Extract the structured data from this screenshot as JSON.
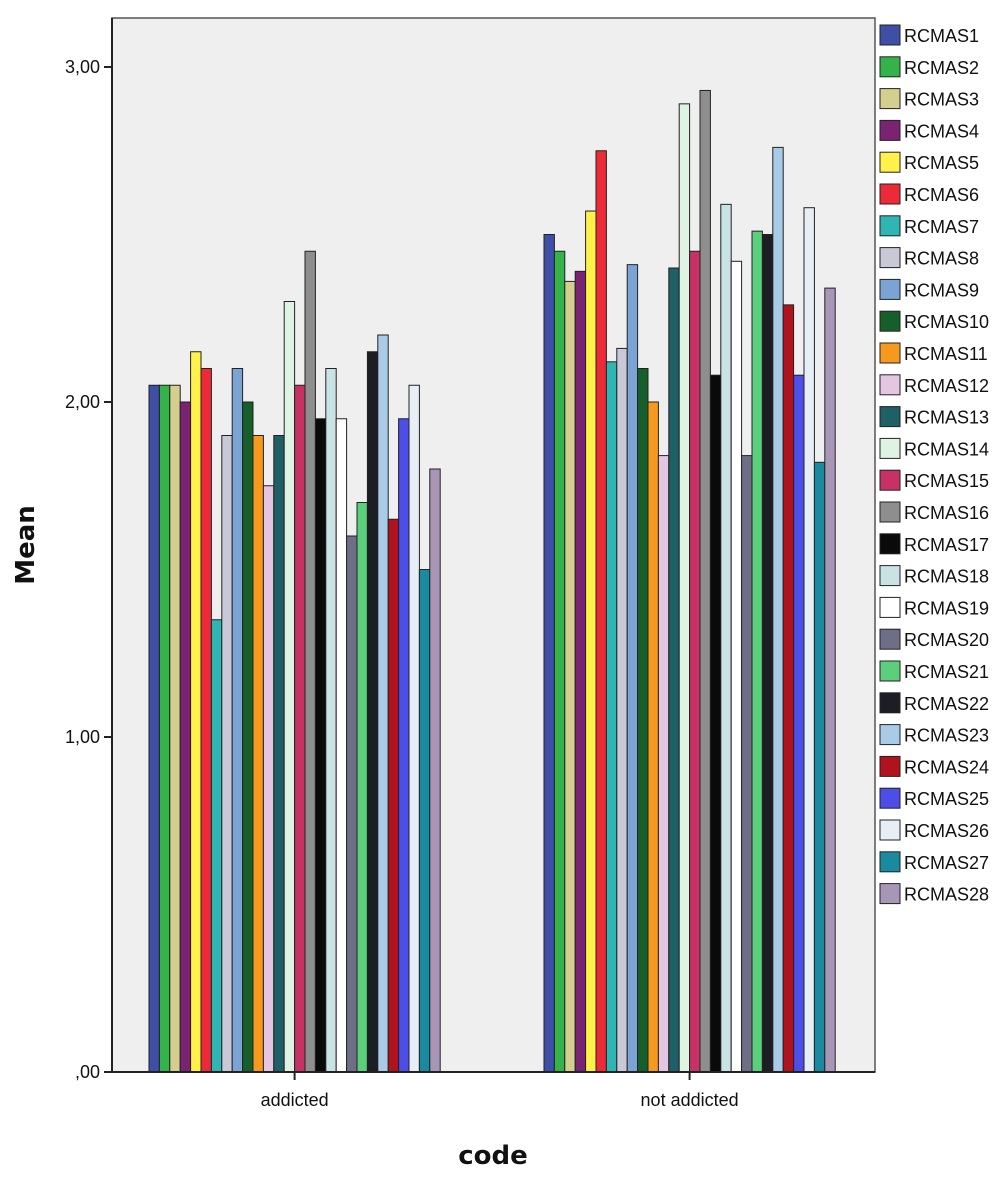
{
  "chart_data": {
    "type": "bar",
    "xlabel": "code",
    "ylabel": "Mean",
    "ylim": [
      0,
      3.2
    ],
    "yticks": [
      {
        "value": 0,
        "label": ",00"
      },
      {
        "value": 1,
        "label": "1,00"
      },
      {
        "value": 2,
        "label": "2,00"
      },
      {
        "value": 3,
        "label": "3,00"
      }
    ],
    "categories": [
      "addicted",
      "not addicted"
    ],
    "legend_position": "right",
    "grid": false,
    "series": [
      {
        "name": "RCMAS1",
        "color": "#3f4fa6",
        "values": [
          2.05,
          2.5
        ]
      },
      {
        "name": "RCMAS2",
        "color": "#33b34a",
        "values": [
          2.05,
          2.45
        ]
      },
      {
        "name": "RCMAS3",
        "color": "#d4cf8e",
        "values": [
          2.05,
          2.36
        ]
      },
      {
        "name": "RCMAS4",
        "color": "#7a2372",
        "values": [
          2.0,
          2.39
        ]
      },
      {
        "name": "RCMAS5",
        "color": "#fff04a",
        "values": [
          2.15,
          2.57
        ]
      },
      {
        "name": "RCMAS6",
        "color": "#ec2a38",
        "values": [
          2.1,
          2.75
        ]
      },
      {
        "name": "RCMAS7",
        "color": "#30b5b5",
        "values": [
          1.35,
          2.12
        ]
      },
      {
        "name": "RCMAS8",
        "color": "#c8c8d6",
        "values": [
          1.9,
          2.16
        ]
      },
      {
        "name": "RCMAS9",
        "color": "#7ba4d4",
        "values": [
          2.1,
          2.41
        ]
      },
      {
        "name": "RCMAS10",
        "color": "#165e2a",
        "values": [
          2.0,
          2.1
        ]
      },
      {
        "name": "RCMAS11",
        "color": "#f59a1e",
        "values": [
          1.9,
          2.0
        ]
      },
      {
        "name": "RCMAS12",
        "color": "#e4c6e2",
        "values": [
          1.75,
          1.84
        ]
      },
      {
        "name": "RCMAS13",
        "color": "#1f5f66",
        "values": [
          1.9,
          2.4
        ]
      },
      {
        "name": "RCMAS14",
        "color": "#dff3e2",
        "values": [
          2.3,
          2.89
        ]
      },
      {
        "name": "RCMAS15",
        "color": "#c73266",
        "values": [
          2.05,
          2.45
        ]
      },
      {
        "name": "RCMAS16",
        "color": "#8e8e8e",
        "values": [
          2.45,
          2.93
        ]
      },
      {
        "name": "RCMAS17",
        "color": "#0a0a0a",
        "values": [
          1.95,
          2.08
        ]
      },
      {
        "name": "RCMAS18",
        "color": "#c9e2e3",
        "values": [
          2.1,
          2.59
        ]
      },
      {
        "name": "RCMAS19",
        "color": "#ffffff",
        "values": [
          1.95,
          2.42
        ]
      },
      {
        "name": "RCMAS20",
        "color": "#6e6e86",
        "values": [
          1.6,
          1.84
        ]
      },
      {
        "name": "RCMAS21",
        "color": "#5ccf7c",
        "values": [
          1.7,
          2.51
        ]
      },
      {
        "name": "RCMAS22",
        "color": "#1d1d26",
        "values": [
          2.15,
          2.5
        ]
      },
      {
        "name": "RCMAS23",
        "color": "#a9cbe8",
        "values": [
          2.2,
          2.76
        ]
      },
      {
        "name": "RCMAS24",
        "color": "#b0121e",
        "values": [
          1.65,
          2.29
        ]
      },
      {
        "name": "RCMAS25",
        "color": "#4d4de8",
        "values": [
          1.95,
          2.08
        ]
      },
      {
        "name": "RCMAS26",
        "color": "#e8eef6",
        "values": [
          2.05,
          2.58
        ]
      },
      {
        "name": "RCMAS27",
        "color": "#1a8aa0",
        "values": [
          1.5,
          1.82
        ]
      },
      {
        "name": "RCMAS28",
        "color": "#a896b6",
        "values": [
          1.8,
          2.34
        ]
      }
    ]
  }
}
